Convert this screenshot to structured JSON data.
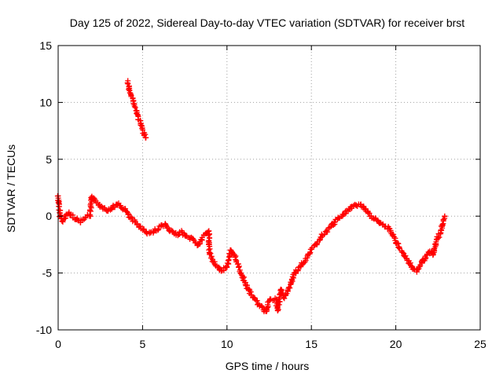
{
  "chart_data": {
    "type": "scatter",
    "title": "Day 125 of 2022, Sidereal Day-to-day VTEC variation (SDTVAR) for receiver brst",
    "xlabel": "GPS time / hours",
    "ylabel": "SDTVAR / TECUs",
    "xlim": [
      0,
      25
    ],
    "ylim": [
      -10,
      15
    ],
    "xticks": [
      0,
      5,
      10,
      15,
      20,
      25
    ],
    "yticks": [
      -10,
      -5,
      0,
      5,
      10,
      15
    ],
    "grid": true,
    "marker": "+",
    "color": "#ff0000",
    "series": [
      {
        "name": "main",
        "points": [
          [
            0.0,
            1.8
          ],
          [
            0.1,
            0.1
          ],
          [
            0.3,
            -0.4
          ],
          [
            0.6,
            0.3
          ],
          [
            1.0,
            -0.2
          ],
          [
            1.3,
            -0.5
          ],
          [
            1.6,
            -0.1
          ],
          [
            1.9,
            0.1
          ],
          [
            2.0,
            1.8
          ],
          [
            2.3,
            1.2
          ],
          [
            2.6,
            0.8
          ],
          [
            3.0,
            0.5
          ],
          [
            3.3,
            0.9
          ],
          [
            3.6,
            1.0
          ],
          [
            4.0,
            0.5
          ],
          [
            4.3,
            -0.2
          ],
          [
            4.6,
            -0.6
          ],
          [
            5.0,
            -1.1
          ],
          [
            5.3,
            -1.5
          ],
          [
            5.6,
            -1.4
          ],
          [
            6.0,
            -1.0
          ],
          [
            6.3,
            -0.7
          ],
          [
            6.6,
            -1.3
          ],
          [
            7.0,
            -1.6
          ],
          [
            7.3,
            -1.4
          ],
          [
            7.6,
            -1.8
          ],
          [
            8.0,
            -2.0
          ],
          [
            8.3,
            -2.6
          ],
          [
            8.6,
            -1.8
          ],
          [
            8.9,
            -1.3
          ],
          [
            9.0,
            -3.5
          ],
          [
            9.3,
            -4.2
          ],
          [
            9.6,
            -4.8
          ],
          [
            10.0,
            -4.5
          ],
          [
            10.2,
            -3.0
          ],
          [
            10.5,
            -3.6
          ],
          [
            10.8,
            -4.9
          ],
          [
            11.1,
            -6.0
          ],
          [
            11.4,
            -6.8
          ],
          [
            11.7,
            -7.4
          ],
          [
            12.0,
            -8.0
          ],
          [
            12.3,
            -8.4
          ],
          [
            12.5,
            -7.4
          ],
          [
            12.9,
            -7.3
          ],
          [
            13.0,
            -8.3
          ],
          [
            13.2,
            -6.5
          ],
          [
            13.4,
            -7.1
          ],
          [
            13.7,
            -6.3
          ],
          [
            14.0,
            -5.0
          ],
          [
            14.3,
            -4.5
          ],
          [
            14.6,
            -3.9
          ],
          [
            15.0,
            -3.0
          ],
          [
            15.3,
            -2.4
          ],
          [
            15.6,
            -1.8
          ],
          [
            16.0,
            -1.1
          ],
          [
            16.3,
            -0.7
          ],
          [
            16.6,
            -0.2
          ],
          [
            17.0,
            0.3
          ],
          [
            17.3,
            0.7
          ],
          [
            17.6,
            1.0
          ],
          [
            18.0,
            0.9
          ],
          [
            18.4,
            0.2
          ],
          [
            18.8,
            -0.3
          ],
          [
            19.2,
            -0.8
          ],
          [
            19.6,
            -1.1
          ],
          [
            20.0,
            -2.2
          ],
          [
            20.3,
            -3.0
          ],
          [
            20.6,
            -3.6
          ],
          [
            20.9,
            -4.3
          ],
          [
            21.2,
            -4.9
          ],
          [
            21.4,
            -4.5
          ],
          [
            21.7,
            -3.7
          ],
          [
            22.0,
            -3.1
          ],
          [
            22.2,
            -3.5
          ],
          [
            22.4,
            -2.2
          ],
          [
            22.6,
            -1.6
          ],
          [
            22.8,
            -0.7
          ],
          [
            22.9,
            0.0
          ]
        ]
      },
      {
        "name": "segment-early",
        "points": [
          [
            4.1,
            11.8
          ],
          [
            4.3,
            10.8
          ],
          [
            4.5,
            9.8
          ],
          [
            4.7,
            8.9
          ],
          [
            4.9,
            8.0
          ],
          [
            5.1,
            7.2
          ],
          [
            5.2,
            6.9
          ]
        ]
      }
    ]
  }
}
